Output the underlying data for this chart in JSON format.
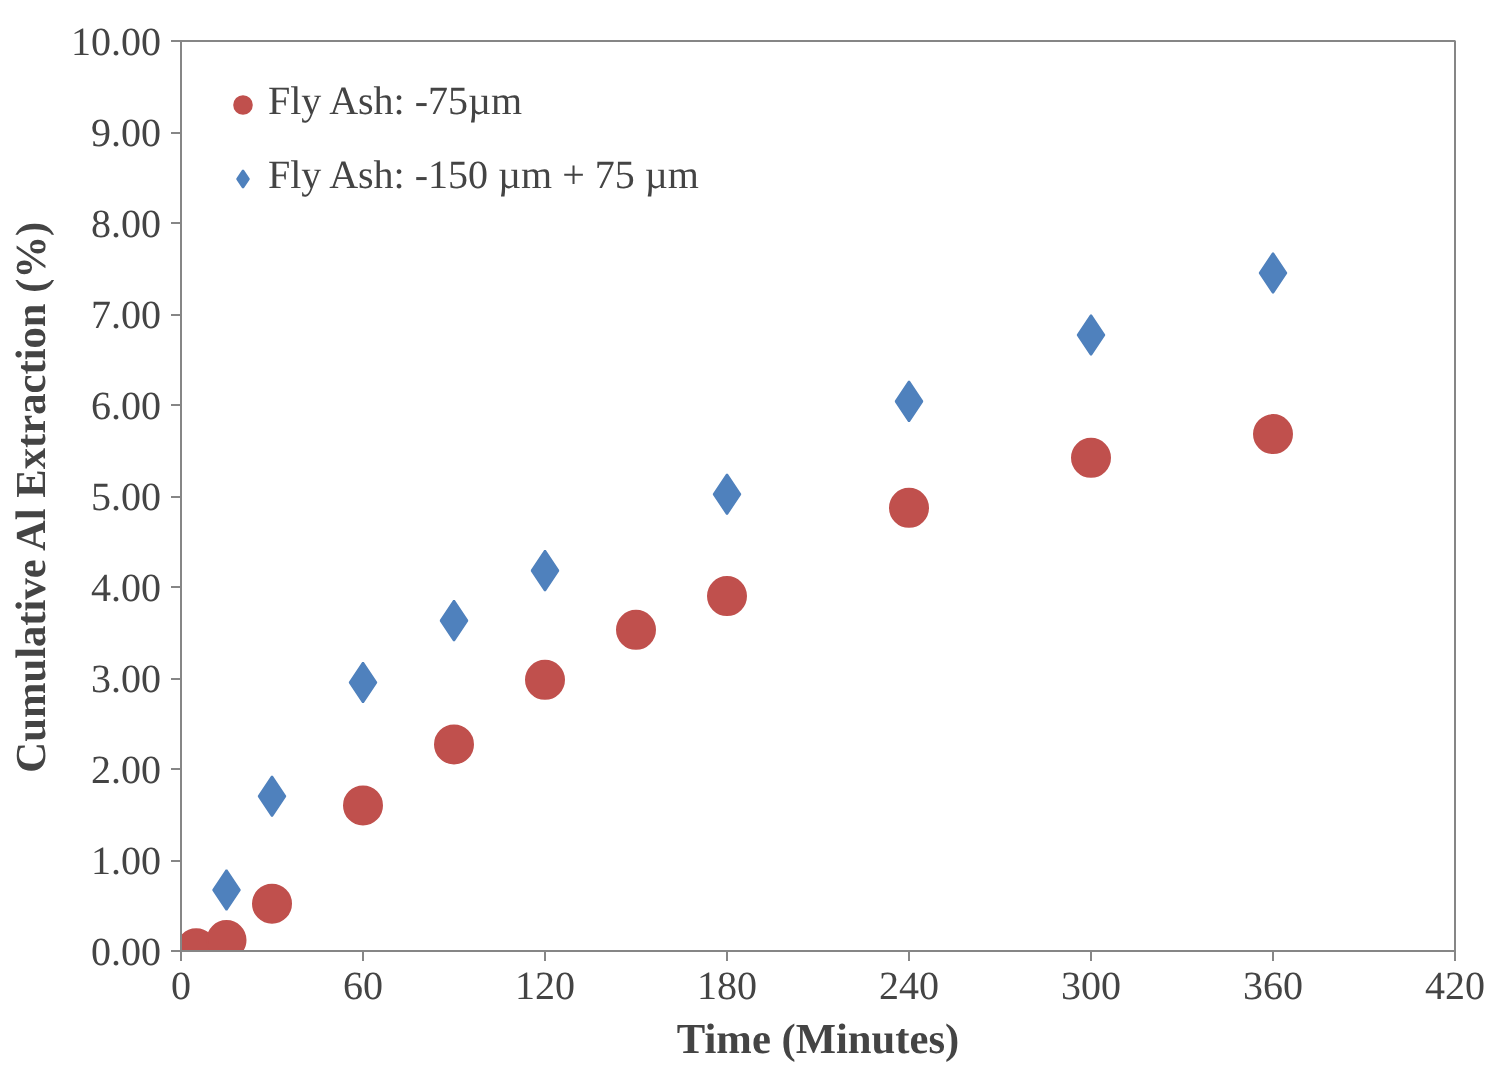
{
  "chart_data": {
    "type": "scatter",
    "xlabel": "Time (Minutes)",
    "ylabel": "Cumulative Al Extraction (%)",
    "xlim": [
      0,
      420
    ],
    "xticks": [
      0,
      60,
      120,
      180,
      240,
      300,
      360,
      420
    ],
    "ylim": [
      0,
      10
    ],
    "yticks": [
      {
        "value": 0,
        "label": "0.00"
      },
      {
        "value": 1,
        "label": "1.00"
      },
      {
        "value": 2,
        "label": "2.00"
      },
      {
        "value": 3,
        "label": "3.00"
      },
      {
        "value": 4,
        "label": "4.00"
      },
      {
        "value": 5,
        "label": "5.00"
      },
      {
        "value": 6,
        "label": "6.00"
      },
      {
        "value": 7,
        "label": "7.00"
      },
      {
        "value": 8,
        "label": "8.00"
      },
      {
        "value": 9,
        "label": "9.00"
      },
      {
        "value": 10,
        "label": "10.00"
      }
    ],
    "grid": false,
    "legend": "top left",
    "series": [
      {
        "name": "Fly Ash: -75µm",
        "color": "#c0504d",
        "marker": "circle",
        "x": [
          5,
          15,
          30,
          60,
          90,
          120,
          150,
          180,
          240,
          300,
          360
        ],
        "values": [
          0.03,
          0.12,
          0.52,
          1.6,
          2.27,
          2.98,
          3.53,
          3.9,
          4.87,
          5.42,
          5.68
        ]
      },
      {
        "name": "Fly Ash: -150 µm + 75 µm",
        "color": "#4f81bd",
        "marker": "diamond",
        "x": [
          15,
          30,
          60,
          90,
          120,
          180,
          240,
          300,
          360
        ],
        "values": [
          0.67,
          1.7,
          2.95,
          3.63,
          4.18,
          5.02,
          6.04,
          6.77,
          7.45
        ]
      }
    ]
  }
}
